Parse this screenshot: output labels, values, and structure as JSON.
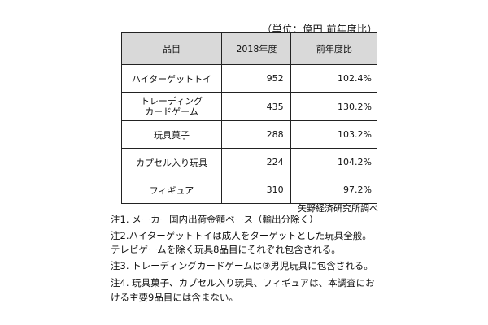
{
  "unit_label": "（単位：億円  前年度比）",
  "table": {
    "headers": [
      "品目",
      "2018年度",
      "前年度比"
    ],
    "rows": [
      {
        "item": "ハイターゲットトイ",
        "value": "952",
        "yoy": "102.4%"
      },
      {
        "item": "トレーディング\nカードゲーム",
        "value": "435",
        "yoy": "130.2%"
      },
      {
        "item": "玩具菓子",
        "value": "288",
        "yoy": "103.2%"
      },
      {
        "item": "カプセル入り玩具",
        "value": "224",
        "yoy": "104.2%"
      },
      {
        "item": "フィギュア",
        "value": "310",
        "yoy": "97.2%"
      }
    ]
  },
  "source": "矢野経済研究所調べ",
  "notes": [
    "注1. メーカー国内出荷金額ベース（輸出分除く）",
    "注2.ハイターゲットトイは成人をターゲットとした玩具全般。テレビゲームを除く玩具8品目にそれぞれ包含される。",
    "注3. トレーディングカードゲームは③男児玩具に包含される。",
    "注4. 玩具菓子、カプセル入り玩具、フィギュアは、本調査における主要9品目には含まない。"
  ]
}
